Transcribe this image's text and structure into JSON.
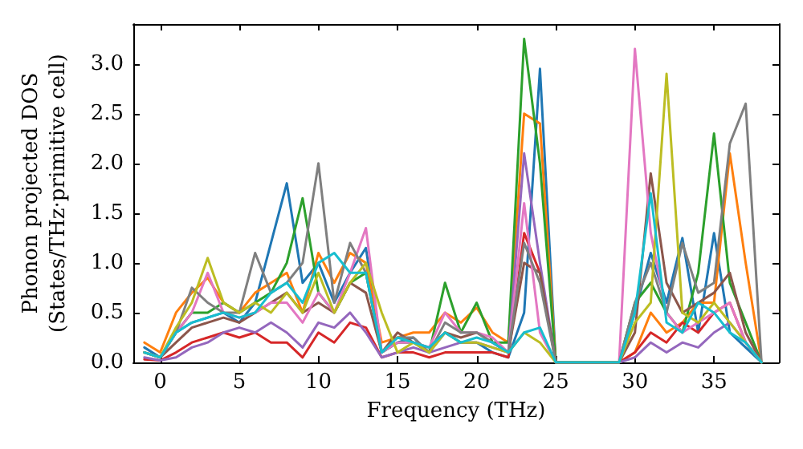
{
  "chart_data": {
    "type": "line",
    "xlabel": "Frequency (THz)",
    "ylabel": "Phonon projected DOS\n(States/THz·primitive cell)",
    "x": [
      -1,
      0,
      1,
      2,
      3,
      4,
      5,
      6,
      7,
      8,
      9,
      10,
      11,
      12,
      13,
      14,
      15,
      16,
      17,
      18,
      19,
      20,
      21,
      22,
      23,
      24,
      25,
      26,
      27,
      28,
      29,
      30,
      31,
      32,
      33,
      34,
      35,
      36,
      37,
      38
    ],
    "xlim": [
      -1.7,
      39.1
    ],
    "xticks": [
      0,
      5,
      10,
      15,
      20,
      25,
      30,
      35
    ],
    "ylim": [
      0,
      3.4
    ],
    "yticks": [
      {
        "value": 0,
        "label": "0.0"
      },
      {
        "value": 0.5,
        "label": "0.5"
      },
      {
        "value": 1,
        "label": "1.0"
      },
      {
        "value": 1.5,
        "label": "1.5"
      },
      {
        "value": 2,
        "label": "2.0"
      },
      {
        "value": 2.5,
        "label": "2.5"
      },
      {
        "value": 3,
        "label": "3.0"
      }
    ],
    "marker": "none",
    "line_style": "solid",
    "grid": false,
    "series": [
      {
        "color": "#1f77b4",
        "values": [
          0.15,
          0.05,
          0.3,
          0.4,
          0.45,
          0.5,
          0.4,
          0.6,
          1.2,
          1.8,
          0.8,
          1.0,
          0.6,
          0.9,
          1.15,
          0.1,
          0.2,
          0.25,
          0.1,
          0.3,
          0.2,
          0.2,
          0.1,
          0.05,
          0.5,
          2.95,
          0,
          0,
          0,
          0,
          0,
          0.5,
          1.1,
          0.6,
          1.25,
          0.3,
          1.3,
          0.3,
          0.15,
          0
        ]
      },
      {
        "color": "#ff7f0e",
        "values": [
          0.2,
          0.1,
          0.5,
          0.7,
          0.85,
          0.6,
          0.5,
          0.7,
          0.8,
          0.9,
          0.5,
          1.1,
          0.8,
          1.1,
          1.0,
          0.2,
          0.25,
          0.3,
          0.3,
          0.5,
          0.4,
          0.55,
          0.3,
          0.2,
          2.5,
          2.4,
          0,
          0,
          0,
          0,
          0,
          0.1,
          0.5,
          0.3,
          0.4,
          0.6,
          0.6,
          2.1,
          1.0,
          0
        ]
      },
      {
        "color": "#2ca02c",
        "values": [
          0.1,
          0.05,
          0.3,
          0.5,
          0.5,
          0.6,
          0.5,
          0.6,
          0.7,
          1.0,
          1.65,
          0.7,
          0.5,
          0.8,
          0.9,
          0.1,
          0.2,
          0.2,
          0.1,
          0.8,
          0.3,
          0.6,
          0.2,
          0.2,
          3.25,
          2.0,
          0,
          0,
          0,
          0,
          0,
          0.6,
          0.8,
          0.5,
          0.3,
          0.9,
          2.3,
          0.8,
          0.4,
          0
        ]
      },
      {
        "color": "#d62728",
        "values": [
          0.03,
          0.02,
          0.1,
          0.2,
          0.25,
          0.3,
          0.25,
          0.3,
          0.2,
          0.2,
          0.05,
          0.3,
          0.2,
          0.4,
          0.35,
          0.05,
          0.1,
          0.1,
          0.05,
          0.1,
          0.1,
          0.1,
          0.1,
          0.05,
          1.3,
          0.9,
          0,
          0,
          0,
          0,
          0,
          0.1,
          0.3,
          0.2,
          0.4,
          0.3,
          0.5,
          0.6,
          0.2,
          0
        ]
      },
      {
        "color": "#9467bd",
        "values": [
          0.05,
          0.02,
          0.05,
          0.15,
          0.2,
          0.3,
          0.35,
          0.3,
          0.4,
          0.3,
          0.15,
          0.4,
          0.35,
          0.5,
          0.3,
          0.05,
          0.1,
          0.15,
          0.1,
          0.15,
          0.2,
          0.2,
          0.15,
          0.1,
          2.1,
          1.0,
          0,
          0,
          0,
          0,
          0,
          0.05,
          0.2,
          0.1,
          0.2,
          0.15,
          0.3,
          0.4,
          0.2,
          0
        ]
      },
      {
        "color": "#8c564b",
        "values": [
          0.1,
          0.05,
          0.2,
          0.35,
          0.4,
          0.45,
          0.4,
          0.5,
          0.6,
          0.7,
          0.5,
          0.6,
          0.5,
          0.8,
          0.7,
          0.1,
          0.3,
          0.2,
          0.15,
          0.3,
          0.25,
          0.3,
          0.2,
          0.1,
          1.0,
          0.9,
          0,
          0,
          0,
          0,
          0,
          0.3,
          1.9,
          0.8,
          0.5,
          0.6,
          0.7,
          0.9,
          0.3,
          0
        ]
      },
      {
        "color": "#e377c2",
        "values": [
          0.1,
          0.05,
          0.3,
          0.5,
          0.9,
          0.5,
          0.45,
          0.5,
          0.6,
          0.6,
          0.4,
          0.7,
          0.5,
          0.9,
          1.35,
          0.1,
          0.2,
          0.2,
          0.15,
          0.5,
          0.3,
          0.3,
          0.25,
          0.1,
          1.6,
          0.3,
          0,
          0,
          0,
          0,
          0,
          3.15,
          1.3,
          0.5,
          0.3,
          0.4,
          0.5,
          0.6,
          0.2,
          0
        ]
      },
      {
        "color": "#7f7f7f",
        "values": [
          0.1,
          0.05,
          0.3,
          0.75,
          0.6,
          0.5,
          0.5,
          1.1,
          0.7,
          0.8,
          1.0,
          2.0,
          0.6,
          1.2,
          0.9,
          0.1,
          0.25,
          0.25,
          0.1,
          0.4,
          0.3,
          0.3,
          0.2,
          0.1,
          1.2,
          0.8,
          0,
          0,
          0,
          0,
          0,
          0.6,
          1.0,
          0.5,
          1.2,
          0.7,
          0.8,
          2.2,
          2.6,
          0
        ]
      },
      {
        "color": "#bcbd22",
        "values": [
          0.1,
          0.05,
          0.35,
          0.6,
          1.05,
          0.6,
          0.5,
          0.6,
          0.5,
          0.7,
          0.5,
          0.9,
          0.5,
          0.8,
          1.0,
          0.5,
          0.1,
          0.2,
          0.1,
          0.3,
          0.2,
          0.2,
          0.15,
          0.1,
          0.3,
          0.2,
          0,
          0,
          0,
          0,
          0,
          0.4,
          0.6,
          2.9,
          0.5,
          0.4,
          0.6,
          0.4,
          0.2,
          0
        ]
      },
      {
        "color": "#17becf",
        "values": [
          0.1,
          0.05,
          0.3,
          0.4,
          0.45,
          0.5,
          0.45,
          0.5,
          0.7,
          0.8,
          0.6,
          1.0,
          1.1,
          0.9,
          0.9,
          0.1,
          0.25,
          0.2,
          0.15,
          0.3,
          0.2,
          0.25,
          0.2,
          0.1,
          0.3,
          0.35,
          0,
          0,
          0,
          0,
          0,
          0.5,
          1.7,
          0.4,
          0.3,
          0.6,
          0.5,
          0.3,
          0.2,
          0
        ]
      }
    ]
  }
}
